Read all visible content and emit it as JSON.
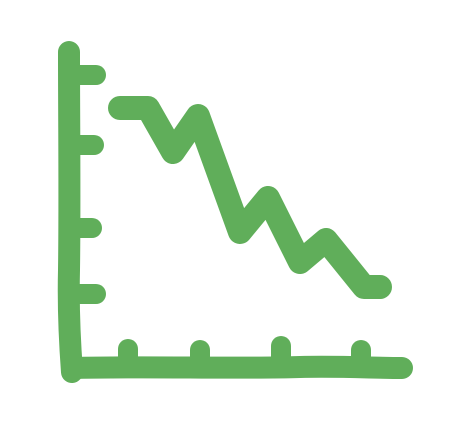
{
  "icon": {
    "name": "declining-line-chart-icon",
    "color": "#60AE5A",
    "background": "#FFFFFF"
  }
}
